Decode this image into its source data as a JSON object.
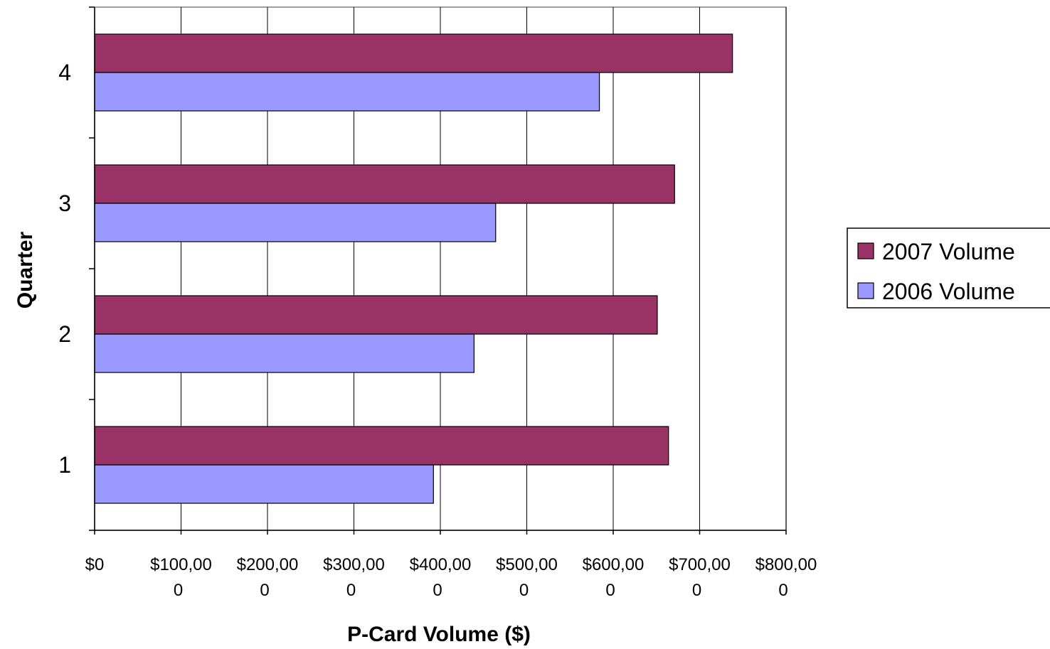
{
  "chart_data": {
    "type": "bar",
    "orientation": "horizontal",
    "categories": [
      "1",
      "2",
      "3",
      "4"
    ],
    "series": [
      {
        "name": "2006 Volume",
        "color": "#9999ff",
        "values": [
          392000,
          439000,
          464000,
          584000
        ]
      },
      {
        "name": "2007 Volume",
        "color": "#993366",
        "values": [
          664000,
          651000,
          671000,
          738000
        ]
      }
    ],
    "xlabel": "P-Card Volume ($)",
    "ylabel": "Quarter",
    "xlim": [
      0,
      800000
    ],
    "x_ticks": [
      {
        "line1": "$0",
        "line2": ""
      },
      {
        "line1": "$100,00",
        "line2": "0"
      },
      {
        "line1": "$200,00",
        "line2": "0"
      },
      {
        "line1": "$300,00",
        "line2": "0"
      },
      {
        "line1": "$400,00",
        "line2": "0"
      },
      {
        "line1": "$500,00",
        "line2": "0"
      },
      {
        "line1": "$600,00",
        "line2": "0"
      },
      {
        "line1": "$700,00",
        "line2": "0"
      },
      {
        "line1": "$800,00",
        "line2": "0"
      }
    ],
    "grid": true,
    "legend_position": "right",
    "legend_order": [
      "2007 Volume",
      "2006 Volume"
    ]
  }
}
